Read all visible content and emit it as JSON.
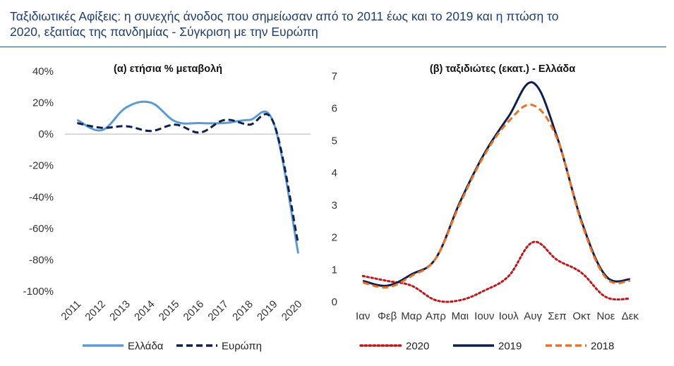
{
  "title": {
    "line1": "Ταξιδιωτικές Αφίξεις: η συνεχής άνοδος που σημείωσαν από το 2011 έως και το 2019 και η πτώση το",
    "line2": "2020, εξαιτίας της πανδημίας - Σύγκριση με την Ευρώπη"
  },
  "chart_data": [
    {
      "type": "line",
      "title": "(α) ετήσια % μεταβολή",
      "categories": [
        "2011",
        "2012",
        "2013",
        "2014",
        "2015",
        "2016",
        "2017",
        "2018",
        "2019",
        "2020"
      ],
      "y_ticks": [
        40,
        20,
        0,
        -20,
        -40,
        -60,
        -80,
        -100
      ],
      "y_tick_labels": [
        "40%",
        "20%",
        "0%",
        "-20%",
        "-40%",
        "-60%",
        "-80%",
        "-100%"
      ],
      "ylim": [
        -100,
        40
      ],
      "zero_line": true,
      "series": [
        {
          "name": "Ελλάδα",
          "color": "#5b9bd5",
          "style": "solid",
          "values": [
            9,
            2.5,
            17,
            20,
            8,
            7,
            7,
            9,
            7,
            -76
          ]
        },
        {
          "name": "Ευρώπη",
          "color": "#0d1f4f",
          "style": "dashed",
          "values": [
            7,
            4,
            5,
            2,
            6,
            1,
            9,
            6,
            7,
            -70
          ]
        }
      ],
      "legend_position": "bottom"
    },
    {
      "type": "line",
      "title": "(β) ταξιδιώτες (εκατ.) - Ελλάδα",
      "categories": [
        "Ιαν",
        "Φεβ",
        "Μαρ",
        "Απρ",
        "Μαι",
        "Ιουν",
        "Ιουλ",
        "Αυγ",
        "Σεπ",
        "Οκτ",
        "Νοε",
        "Δεκ"
      ],
      "y_ticks": [
        0,
        1,
        2,
        3,
        4,
        5,
        6,
        7
      ],
      "ylim": [
        0,
        7
      ],
      "series": [
        {
          "name": "2020",
          "color": "#c0161c",
          "style": "dotted",
          "values": [
            0.8,
            0.65,
            0.5,
            0.05,
            0.05,
            0.35,
            0.8,
            1.85,
            1.3,
            0.9,
            0.15,
            0.1
          ]
        },
        {
          "name": "2019",
          "color": "#0d1f4f",
          "style": "solid",
          "values": [
            0.65,
            0.5,
            0.85,
            1.35,
            3.1,
            4.6,
            5.75,
            6.8,
            5.1,
            2.5,
            0.8,
            0.7
          ]
        },
        {
          "name": "2018",
          "color": "#f07020",
          "style": "dashed",
          "values": [
            0.6,
            0.45,
            0.8,
            1.35,
            3.05,
            4.55,
            5.6,
            6.1,
            5.05,
            2.45,
            0.75,
            0.65
          ]
        }
      ],
      "legend_position": "bottom"
    }
  ]
}
